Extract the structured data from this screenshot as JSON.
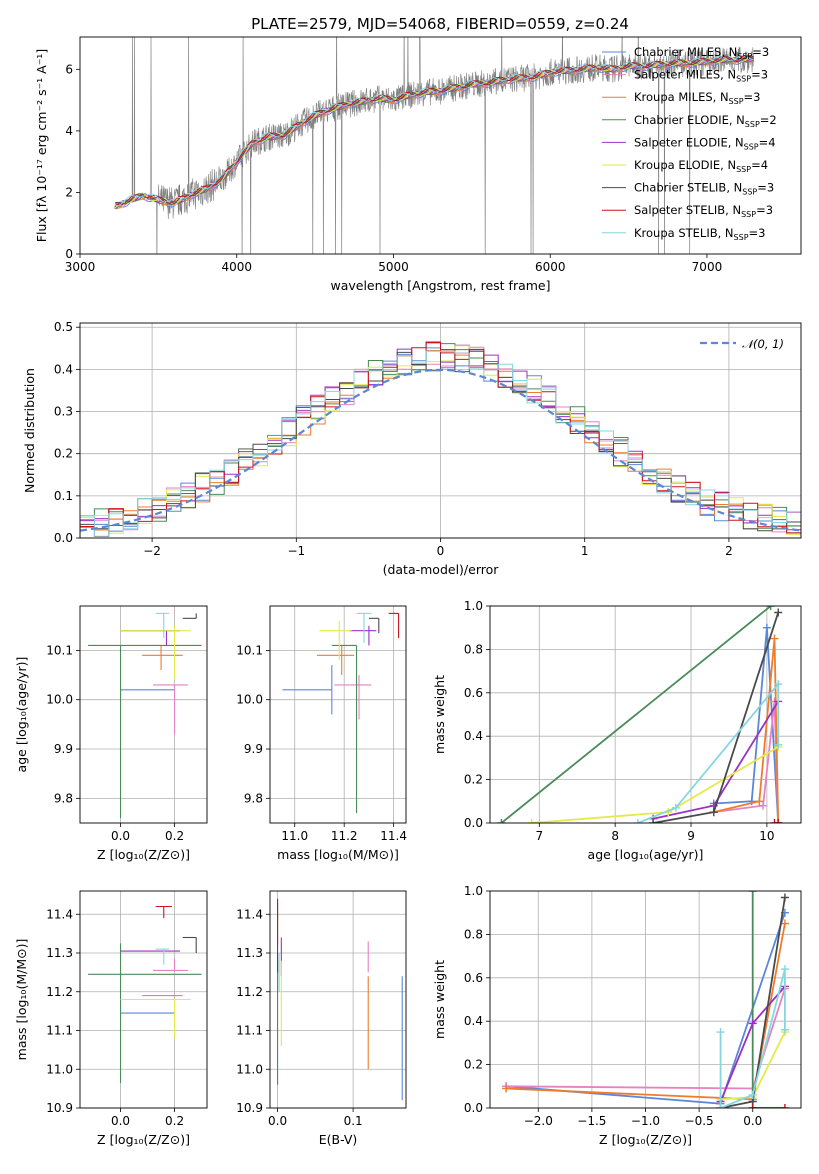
{
  "title": "PLATE=2579, MJD=54068, FIBERID=0559, z=0.24",
  "models": [
    {
      "name": "Chabrier MILES",
      "nssp": "3",
      "color": "#5b88d6"
    },
    {
      "name": "Salpeter MILES",
      "nssp": "3",
      "color": "#e482c4"
    },
    {
      "name": "Kroupa MILES",
      "nssp": "3",
      "color": "#ef7c2c"
    },
    {
      "name": "Chabrier ELODIE",
      "nssp": "2",
      "color": "#4b8a5a"
    },
    {
      "name": "Salpeter ELODIE",
      "nssp": "4",
      "color": "#9a32c4"
    },
    {
      "name": "Kroupa ELODIE",
      "nssp": "4",
      "color": "#e4ea47"
    },
    {
      "name": "Chabrier STELIB",
      "nssp": "3",
      "color": "#4a4a4a"
    },
    {
      "name": "Salpeter STELIB",
      "nssp": "3",
      "color": "#c8141e"
    },
    {
      "name": "Kroupa STELIB",
      "nssp": "3",
      "color": "#86d6e2"
    }
  ],
  "chart_data": [
    {
      "type": "line",
      "panel": "spectrum",
      "xlabel": "wavelength [Angstrom, rest frame]",
      "ylabel": "Flux [fλ 10⁻¹⁷ erg cm⁻² s⁻¹ A⁻¹]",
      "xlim": [
        3000,
        7600
      ],
      "ylim": [
        0,
        7.05
      ],
      "xticks": [
        3000,
        4000,
        5000,
        6000,
        7000
      ],
      "yticks": [
        0,
        2,
        4,
        6
      ],
      "data_color": "#7f7f7f",
      "continuum": [
        [
          3220,
          1.55
        ],
        [
          3300,
          1.7
        ],
        [
          3400,
          1.9
        ],
        [
          3500,
          1.75
        ],
        [
          3600,
          1.65
        ],
        [
          3700,
          1.9
        ],
        [
          3800,
          2.1
        ],
        [
          3900,
          2.4
        ],
        [
          4000,
          3.0
        ],
        [
          4100,
          3.6
        ],
        [
          4200,
          3.8
        ],
        [
          4300,
          3.85
        ],
        [
          4400,
          4.2
        ],
        [
          4500,
          4.5
        ],
        [
          4600,
          4.7
        ],
        [
          4700,
          4.85
        ],
        [
          4800,
          4.95
        ],
        [
          4900,
          5.05
        ],
        [
          5000,
          5.0
        ],
        [
          5100,
          5.15
        ],
        [
          5200,
          5.25
        ],
        [
          5300,
          5.3
        ],
        [
          5400,
          5.4
        ],
        [
          5500,
          5.5
        ],
        [
          5600,
          5.55
        ],
        [
          5700,
          5.65
        ],
        [
          5800,
          5.7
        ],
        [
          5900,
          5.75
        ],
        [
          6000,
          5.9
        ],
        [
          6100,
          5.95
        ],
        [
          6200,
          6.0
        ],
        [
          6300,
          6.05
        ],
        [
          6400,
          6.0
        ],
        [
          6500,
          6.1
        ],
        [
          6600,
          6.1
        ],
        [
          6700,
          6.15
        ],
        [
          6800,
          6.2
        ],
        [
          6900,
          6.2
        ],
        [
          7000,
          6.25
        ],
        [
          7100,
          6.3
        ],
        [
          7200,
          6.3
        ],
        [
          7300,
          6.35
        ]
      ]
    },
    {
      "type": "line",
      "panel": "residual_histogram",
      "xlabel": "(data-model)/error",
      "ylabel": "Normed distribution",
      "xlim": [
        -2.5,
        2.5
      ],
      "ylim": [
        0,
        0.51
      ],
      "xticks": [
        -2,
        -1,
        0,
        1,
        2
      ],
      "yticks": [
        0,
        0.1,
        0.2,
        0.3,
        0.4,
        0.5
      ],
      "gauss_label": "𝒩(0, 1)",
      "gauss_color": "#5b88d6"
    },
    {
      "type": "scatter",
      "panel": "age_vs_Z",
      "xlabel": "Z [log₁₀(Z/Z⊙)]",
      "ylabel": "age  [log₁₀(age/yr)]",
      "xlim": [
        -0.15,
        0.32
      ],
      "ylim": [
        9.75,
        10.19
      ],
      "xticks": [
        0.0,
        0.2
      ],
      "yticks": [
        9.8,
        9.9,
        10.0,
        10.1
      ],
      "points": [
        {
          "x": 0.0,
          "y": 10.02,
          "xerr": [
            0.0,
            0.2
          ],
          "yerr": [
            0.0,
            0.0
          ],
          "c": 0
        },
        {
          "x": 0.2,
          "y": 10.03,
          "xerr": [
            0.08,
            0.05
          ],
          "yerr": [
            0.1,
            0.0
          ],
          "c": 1
        },
        {
          "x": 0.15,
          "y": 10.09,
          "xerr": [
            0.07,
            0.08
          ],
          "yerr": [
            0.03,
            0.02
          ],
          "c": 2
        },
        {
          "x": 0.0,
          "y": 10.11,
          "xerr": [
            0.12,
            0.3
          ],
          "yerr": [
            0.35,
            0.0
          ],
          "c": 3
        },
        {
          "x": 0.17,
          "y": 10.14,
          "xerr": [
            0.17,
            0.05
          ],
          "yerr": [
            0.03,
            0.0
          ],
          "c": 4
        },
        {
          "x": 0.2,
          "y": 10.14,
          "xerr": [
            0.2,
            0.06
          ],
          "yerr": [
            0.1,
            0.01
          ],
          "c": 5
        },
        {
          "x": 0.28,
          "y": 10.165,
          "xerr": [
            0.05,
            0.0
          ],
          "yerr": [
            0.0,
            0.01
          ],
          "c": 6
        },
        {
          "x": 0.16,
          "y": 10.175,
          "xerr": [
            0.03,
            0.02
          ],
          "yerr": [
            0.05,
            0.0
          ],
          "c": 8
        }
      ]
    },
    {
      "type": "scatter",
      "panel": "age_vs_mass",
      "xlabel": "mass [log₁₀(M/M⊙)]",
      "ylabel": "",
      "xlim": [
        10.9,
        11.45
      ],
      "ylim": [
        9.75,
        10.19
      ],
      "xticks": [
        11.0,
        11.2,
        11.4
      ],
      "yticks": [
        9.8,
        9.9,
        10.0,
        10.1
      ],
      "points": [
        {
          "x": 11.15,
          "y": 10.02,
          "xerr": [
            0.2,
            0.0
          ],
          "yerr": [
            0.05,
            0.05
          ],
          "c": 0
        },
        {
          "x": 11.26,
          "y": 10.03,
          "xerr": [
            0.1,
            0.05
          ],
          "yerr": [
            0.07,
            0.02
          ],
          "c": 1
        },
        {
          "x": 11.19,
          "y": 10.09,
          "xerr": [
            0.1,
            0.05
          ],
          "yerr": [
            0.04,
            0.02
          ],
          "c": 2
        },
        {
          "x": 11.25,
          "y": 10.11,
          "xerr": [
            0.1,
            0.0
          ],
          "yerr": [
            0.34,
            0.0
          ],
          "c": 3
        },
        {
          "x": 11.3,
          "y": 10.14,
          "xerr": [
            0.08,
            0.03
          ],
          "yerr": [
            0.03,
            0.01
          ],
          "c": 4
        },
        {
          "x": 11.18,
          "y": 10.14,
          "xerr": [
            0.08,
            0.05
          ],
          "yerr": [
            0.06,
            0.02
          ],
          "c": 5
        },
        {
          "x": 11.34,
          "y": 10.165,
          "xerr": [
            0.04,
            0.0
          ],
          "yerr": [
            0.03,
            0.0
          ],
          "c": 6
        },
        {
          "x": 11.42,
          "y": 10.175,
          "xerr": [
            0.04,
            0.0
          ],
          "yerr": [
            0.05,
            0.0
          ],
          "c": 7
        },
        {
          "x": 11.28,
          "y": 10.175,
          "xerr": [
            0.03,
            0.03
          ],
          "yerr": [
            0.06,
            0.0
          ],
          "c": 8
        }
      ]
    },
    {
      "type": "line",
      "panel": "mass_weight_vs_age",
      "xlabel": "age  [log₁₀(age/yr)]",
      "ylabel": "mass weight",
      "xlim": [
        6.35,
        10.45
      ],
      "ylim": [
        0,
        1.0
      ],
      "xticks": [
        7,
        8,
        9,
        10
      ],
      "yticks": [
        0.0,
        0.2,
        0.4,
        0.6,
        0.8,
        1.0
      ],
      "series": [
        {
          "c": 0,
          "pts": [
            [
              9.3,
              0.09
            ],
            [
              9.8,
              0.1
            ],
            [
              10.0,
              0.9
            ],
            [
              10.15,
              0.0
            ]
          ]
        },
        {
          "c": 1,
          "pts": [
            [
              9.3,
              0.05
            ],
            [
              9.95,
              0.08
            ],
            [
              10.1,
              0.56
            ],
            [
              10.15,
              0.0
            ]
          ]
        },
        {
          "c": 2,
          "pts": [
            [
              9.3,
              0.05
            ],
            [
              9.9,
              0.1
            ],
            [
              10.1,
              0.85
            ],
            [
              10.15,
              0.0
            ]
          ]
        },
        {
          "c": 3,
          "pts": [
            [
              6.5,
              0.0
            ],
            [
              10.05,
              1.0
            ]
          ]
        },
        {
          "c": 4,
          "pts": [
            [
              8.5,
              0.02
            ],
            [
              9.3,
              0.08
            ],
            [
              10.15,
              0.56
            ]
          ]
        },
        {
          "c": 5,
          "pts": [
            [
              6.9,
              0.0
            ],
            [
              8.7,
              0.05
            ],
            [
              10.15,
              0.35
            ]
          ]
        },
        {
          "c": 6,
          "pts": [
            [
              8.5,
              0.0
            ],
            [
              9.3,
              0.05
            ],
            [
              10.15,
              0.97
            ]
          ]
        },
        {
          "c": 7,
          "pts": [
            [
              10.1,
              0.0
            ],
            [
              10.15,
              0.0
            ]
          ]
        },
        {
          "c": 8,
          "pts": [
            [
              8.3,
              0.0
            ],
            [
              8.8,
              0.07
            ],
            [
              10.15,
              0.64
            ],
            [
              10.15,
              0.36
            ]
          ]
        }
      ]
    },
    {
      "type": "scatter",
      "panel": "mass_vs_Z",
      "xlabel": "Z [log₁₀(Z/Z⊙)]",
      "ylabel": "mass [log₁₀(M/M⊙)]",
      "xlim": [
        -0.15,
        0.32
      ],
      "ylim": [
        10.9,
        11.46
      ],
      "xticks": [
        0.0,
        0.2
      ],
      "yticks": [
        10.9,
        11.0,
        11.1,
        11.2,
        11.3,
        11.4
      ],
      "points": [
        {
          "x": 0.0,
          "y": 11.145,
          "xerr": [
            0.0,
            0.2
          ],
          "yerr": [
            0.0,
            0.0
          ],
          "c": 0
        },
        {
          "x": 0.2,
          "y": 11.255,
          "xerr": [
            0.08,
            0.05
          ],
          "yerr": [
            0.0,
            0.03
          ],
          "c": 1
        },
        {
          "x": 0.15,
          "y": 11.19,
          "xerr": [
            0.07,
            0.08
          ],
          "yerr": [
            0.0,
            0.0
          ],
          "c": 2
        },
        {
          "x": 0.0,
          "y": 11.245,
          "xerr": [
            0.12,
            0.3
          ],
          "yerr": [
            0.28,
            0.08
          ],
          "c": 3
        },
        {
          "x": 0.17,
          "y": 11.305,
          "xerr": [
            0.17,
            0.05
          ],
          "yerr": [
            0.0,
            0.0
          ],
          "c": 4
        },
        {
          "x": 0.2,
          "y": 11.18,
          "xerr": [
            0.2,
            0.06
          ],
          "yerr": [
            0.1,
            0.0
          ],
          "c": 5
        },
        {
          "x": 0.28,
          "y": 11.34,
          "xerr": [
            0.05,
            0.0
          ],
          "yerr": [
            0.04,
            0.0
          ],
          "c": 6
        },
        {
          "x": 0.16,
          "y": 11.42,
          "xerr": [
            0.03,
            0.03
          ],
          "yerr": [
            0.03,
            0.0
          ],
          "c": 7
        },
        {
          "x": 0.16,
          "y": 11.31,
          "xerr": [
            0.03,
            0.02
          ],
          "yerr": [
            0.04,
            0.0
          ],
          "c": 8
        }
      ]
    },
    {
      "type": "scatter",
      "panel": "mass_vs_EBV",
      "xlabel": "E(B-V)",
      "ylabel": "",
      "xlim": [
        -0.01,
        0.17
      ],
      "ylim": [
        10.9,
        11.46
      ],
      "xticks": [
        0.0,
        0.1
      ],
      "yticks": [
        10.9,
        11.0,
        11.1,
        11.2,
        11.3,
        11.4
      ],
      "points": [
        {
          "x": 0.165,
          "y": 11.08,
          "yerr": [
            0.16,
            0.16
          ],
          "c": 0
        },
        {
          "x": 0.12,
          "y": 11.25,
          "yerr": [
            0.0,
            0.08
          ],
          "c": 1
        },
        {
          "x": 0.12,
          "y": 11.12,
          "yerr": [
            0.12,
            0.12
          ],
          "c": 2
        },
        {
          "x": 0.0,
          "y": 11.12,
          "yerr": [
            0.16,
            0.16
          ],
          "c": 3
        },
        {
          "x": 0.005,
          "y": 11.29,
          "yerr": [
            0.05,
            0.05
          ],
          "c": 4
        },
        {
          "x": 0.005,
          "y": 11.18,
          "yerr": [
            0.12,
            0.1
          ],
          "c": 5
        },
        {
          "x": 0.0,
          "y": 11.33,
          "yerr": [
            0.08,
            0.1
          ],
          "c": 6
        },
        {
          "x": 0.0,
          "y": 11.37,
          "yerr": [
            0.05,
            0.07
          ],
          "c": 7
        },
        {
          "x": 0.002,
          "y": 11.25,
          "yerr": [
            0.05,
            0.05
          ],
          "c": 8
        }
      ]
    },
    {
      "type": "line",
      "panel": "mass_weight_vs_Z",
      "xlabel": "Z [log₁₀(Z/Z⊙)]",
      "ylabel": "mass weight",
      "xlim": [
        -2.45,
        0.45
      ],
      "ylim": [
        0,
        1.0
      ],
      "xticks": [
        -2.0,
        -1.5,
        -1.0,
        -0.5,
        0.0
      ],
      "yticks": [
        0.0,
        0.2,
        0.4,
        0.6,
        0.8,
        1.0
      ],
      "series": [
        {
          "c": 0,
          "pts": [
            [
              -2.3,
              0.1
            ],
            [
              -0.3,
              0.02
            ],
            [
              0.3,
              0.9
            ]
          ]
        },
        {
          "c": 1,
          "pts": [
            [
              -2.3,
              0.1
            ],
            [
              0.0,
              0.09
            ],
            [
              0.3,
              0.55
            ]
          ]
        },
        {
          "c": 2,
          "pts": [
            [
              -2.3,
              0.09
            ],
            [
              0.0,
              0.04
            ],
            [
              0.3,
              0.85
            ]
          ]
        },
        {
          "c": 3,
          "pts": [
            [
              0.0,
              1.0
            ],
            [
              0.0,
              0.0
            ]
          ]
        },
        {
          "c": 4,
          "pts": [
            [
              -0.3,
              0.03
            ],
            [
              0.0,
              0.39
            ],
            [
              0.3,
              0.56
            ]
          ]
        },
        {
          "c": 5,
          "pts": [
            [
              -0.3,
              0.04
            ],
            [
              0.0,
              0.05
            ],
            [
              0.3,
              0.35
            ]
          ]
        },
        {
          "c": 6,
          "pts": [
            [
              -0.3,
              0.0
            ],
            [
              0.0,
              0.03
            ],
            [
              0.3,
              0.97
            ]
          ]
        },
        {
          "c": 7,
          "pts": [
            [
              0.0,
              0.0
            ],
            [
              0.3,
              0.0
            ]
          ]
        },
        {
          "c": 8,
          "pts": [
            [
              -0.3,
              0.35
            ],
            [
              -0.3,
              0.0
            ],
            [
              0.0,
              0.06
            ],
            [
              0.3,
              0.64
            ],
            [
              0.3,
              0.36
            ]
          ]
        }
      ]
    }
  ]
}
